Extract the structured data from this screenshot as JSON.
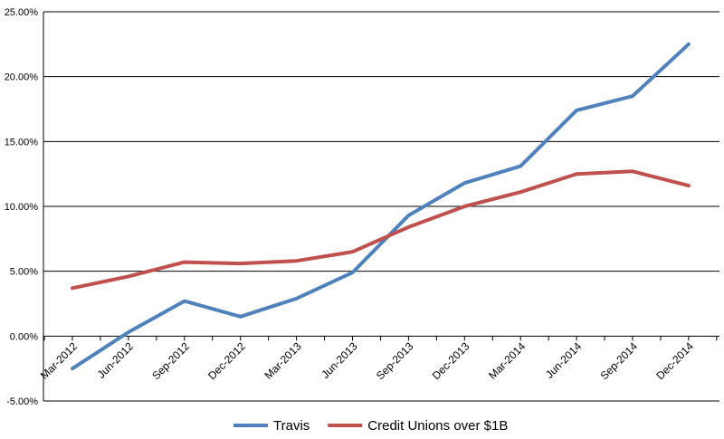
{
  "chart_data": {
    "type": "line",
    "title": "",
    "xlabel": "",
    "ylabel": "",
    "categories": [
      "Mar-2012",
      "Jun-2012",
      "Sep-2012",
      "Dec-2012",
      "Mar-2013",
      "Jun-2013",
      "Sep-2013",
      "Dec-2013",
      "Mar-2014",
      "Jun-2014",
      "Sep-2014",
      "Dec-2014"
    ],
    "ylim": [
      -5,
      25
    ],
    "yticks": [
      -5,
      0,
      5,
      10,
      15,
      20,
      25
    ],
    "ytick_labels": [
      "-5.00%",
      "0.00%",
      "5.00%",
      "10.00%",
      "15.00%",
      "20.00%",
      "25.00%"
    ],
    "grid": true,
    "legend_position": "bottom",
    "series": [
      {
        "name": "Travis",
        "color": "#4F81BD",
        "values": [
          -2.5,
          0.3,
          2.7,
          1.5,
          2.9,
          4.9,
          9.3,
          11.8,
          13.1,
          17.4,
          18.5,
          22.5
        ]
      },
      {
        "name": "Credit Unions over $1B",
        "color": "#C0504D",
        "values": [
          3.7,
          4.6,
          5.7,
          5.6,
          5.8,
          6.5,
          8.4,
          10.0,
          11.1,
          12.5,
          12.7,
          11.6
        ]
      }
    ]
  }
}
